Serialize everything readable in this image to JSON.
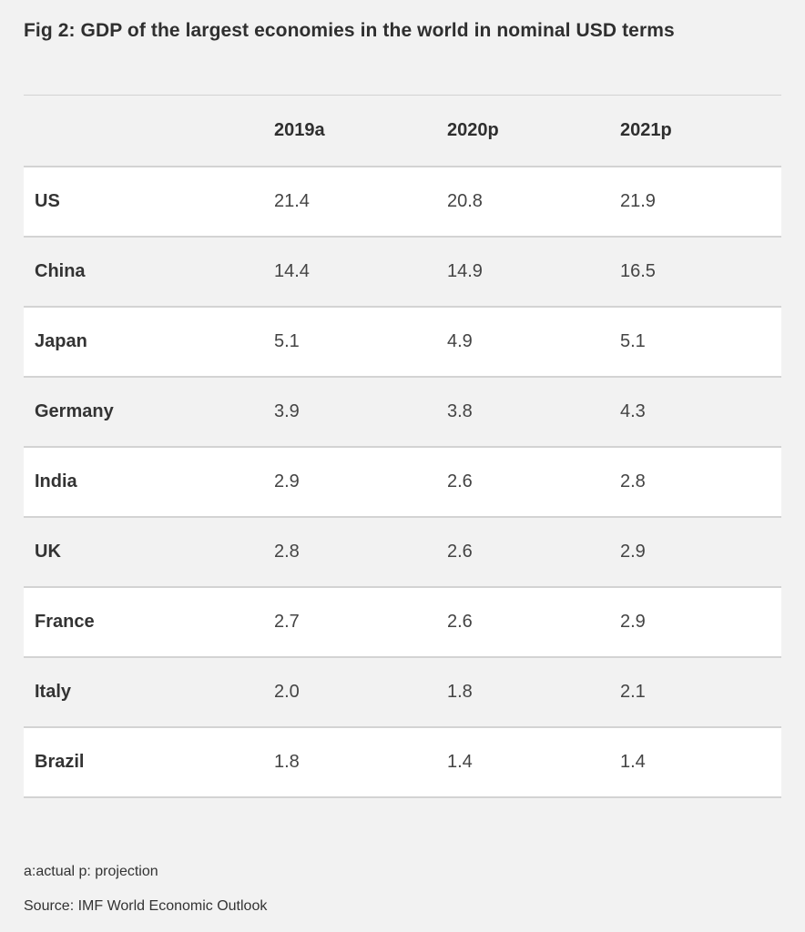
{
  "title": "Fig 2: GDP of the largest economies in the world in nominal USD terms",
  "chart_data": {
    "type": "table",
    "title": "Fig 2: GDP of the largest economies in the world in nominal USD terms",
    "columns": [
      "",
      "2019a",
      "2020p",
      "2021p"
    ],
    "rows": [
      {
        "country": "US",
        "values": [
          "21.4",
          "20.8",
          "21.9"
        ]
      },
      {
        "country": "China",
        "values": [
          "14.4",
          "14.9",
          "16.5"
        ]
      },
      {
        "country": "Japan",
        "values": [
          "5.1",
          "4.9",
          "5.1"
        ]
      },
      {
        "country": "Germany",
        "values": [
          "3.9",
          "3.8",
          "4.3"
        ]
      },
      {
        "country": "India",
        "values": [
          "2.9",
          "2.6",
          "2.8"
        ]
      },
      {
        "country": "UK",
        "values": [
          "2.8",
          "2.6",
          "2.9"
        ]
      },
      {
        "country": "France",
        "values": [
          "2.7",
          "2.6",
          "2.9"
        ]
      },
      {
        "country": "Italy",
        "values": [
          "2.0",
          "1.8",
          "2.1"
        ]
      },
      {
        "country": "Brazil",
        "values": [
          "1.8",
          "1.4",
          "1.4"
        ]
      }
    ]
  },
  "notes": {
    "legend": "a:actual p: projection",
    "source": "Source: IMF World Economic Outlook"
  },
  "colors": {
    "background": "#f2f2f2",
    "row_alt": "#ffffff",
    "divider": "#d3d3d3",
    "text": "#333333"
  }
}
